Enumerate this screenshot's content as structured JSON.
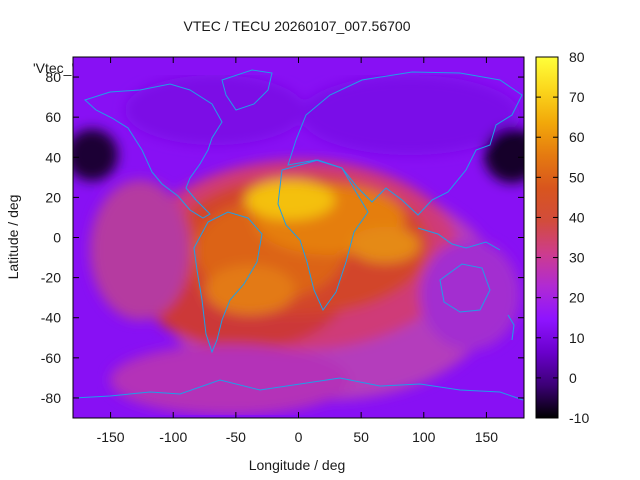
{
  "chart_data": {
    "type": "heatmap",
    "title": "VTEC / TECU 20260107_007.56700",
    "xlabel": "Longitude / deg",
    "ylabel": "Latitude / deg",
    "key_label": "'Vtec_'",
    "xlim": [
      -180,
      180
    ],
    "ylim": [
      -90,
      90
    ],
    "xticks": [
      -150,
      -100,
      -50,
      0,
      50,
      100,
      150
    ],
    "yticks": [
      -80,
      -60,
      -40,
      -20,
      0,
      20,
      40,
      60,
      80
    ],
    "colorbar": {
      "range": [
        -10,
        80
      ],
      "ticks": [
        -10,
        0,
        10,
        20,
        30,
        40,
        50,
        60,
        70,
        80
      ],
      "palette": [
        "#000000",
        "#3c0076",
        "#6a00cc",
        "#8e14ff",
        "#b02ad4",
        "#cd3c8e",
        "#d24c3c",
        "#d8551e",
        "#e57a10",
        "#f2a80a",
        "#fbd61c",
        "#ffff3a"
      ]
    },
    "grid": false,
    "overlay": "coastlines",
    "grid_points": [
      {
        "lon": -150,
        "lat": 80,
        "vtec": 12
      },
      {
        "lon": -150,
        "lat": 40,
        "vtec": 10
      },
      {
        "lon": -150,
        "lat": 0,
        "vtec": 22
      },
      {
        "lon": -150,
        "lat": -40,
        "vtec": 28
      },
      {
        "lon": -100,
        "lat": 40,
        "vtec": 22
      },
      {
        "lon": -100,
        "lat": 0,
        "vtec": 42
      },
      {
        "lon": -100,
        "lat": -40,
        "vtec": 42
      },
      {
        "lon": -50,
        "lat": 20,
        "vtec": 55
      },
      {
        "lon": -50,
        "lat": 0,
        "vtec": 58
      },
      {
        "lon": -50,
        "lat": -30,
        "vtec": 58
      },
      {
        "lon": 0,
        "lat": 20,
        "vtec": 65
      },
      {
        "lon": 0,
        "lat": 0,
        "vtec": 60
      },
      {
        "lon": 0,
        "lat": -30,
        "vtec": 52
      },
      {
        "lon": 50,
        "lat": 20,
        "vtec": 50
      },
      {
        "lon": 50,
        "lat": 0,
        "vtec": 48
      },
      {
        "lon": 50,
        "lat": -40,
        "vtec": 30
      },
      {
        "lon": 100,
        "lat": 20,
        "vtec": 28
      },
      {
        "lon": 100,
        "lat": -20,
        "vtec": 25
      },
      {
        "lon": 150,
        "lat": 0,
        "vtec": 15
      },
      {
        "lon": 180,
        "lat": 35,
        "vtec": -8
      },
      {
        "lon": -180,
        "lat": 35,
        "vtec": -6
      }
    ]
  }
}
